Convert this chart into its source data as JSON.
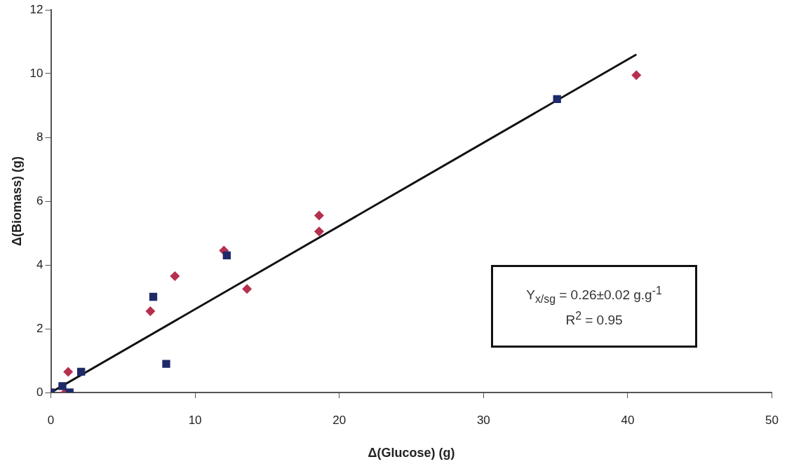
{
  "chart_data": {
    "type": "scatter",
    "xlabel": "Δ(Glucose) (g)",
    "ylabel": "Δ(Biomass) (g)",
    "xlim": [
      0,
      50
    ],
    "xticks": [
      0,
      10,
      20,
      30,
      40,
      50
    ],
    "ylim": [
      0,
      12
    ],
    "yticks": [
      0,
      2,
      4,
      6,
      8,
      10,
      12
    ],
    "grid": false,
    "legend": false,
    "annotations": [
      "Y$_{x/sg}$ = 0.26±0.02 g.g$^{-1}$",
      "R$^{2}$ = 0.95"
    ],
    "series": [
      {
        "marker": "square",
        "color": "#1f2a6b",
        "x": [
          0,
          0.8,
          1.3,
          2.1,
          7.1,
          8.0,
          12.2,
          35.1
        ],
        "values": [
          0,
          0.2,
          0,
          0.65,
          3.0,
          0.9,
          4.3,
          9.2
        ]
      },
      {
        "marker": "diamond",
        "color": "#b5304f",
        "x": [
          0,
          1.0,
          1.2,
          6.9,
          8.6,
          12.0,
          13.6,
          18.6,
          18.6,
          40.6
        ],
        "values": [
          0,
          0,
          0.65,
          2.55,
          3.65,
          4.45,
          3.25,
          5.55,
          5.05,
          9.95
        ]
      },
      {
        "type": "line",
        "marker": "none",
        "color": "#111111",
        "x": [
          0,
          40.6
        ],
        "values": [
          0,
          10.6
        ]
      }
    ]
  }
}
